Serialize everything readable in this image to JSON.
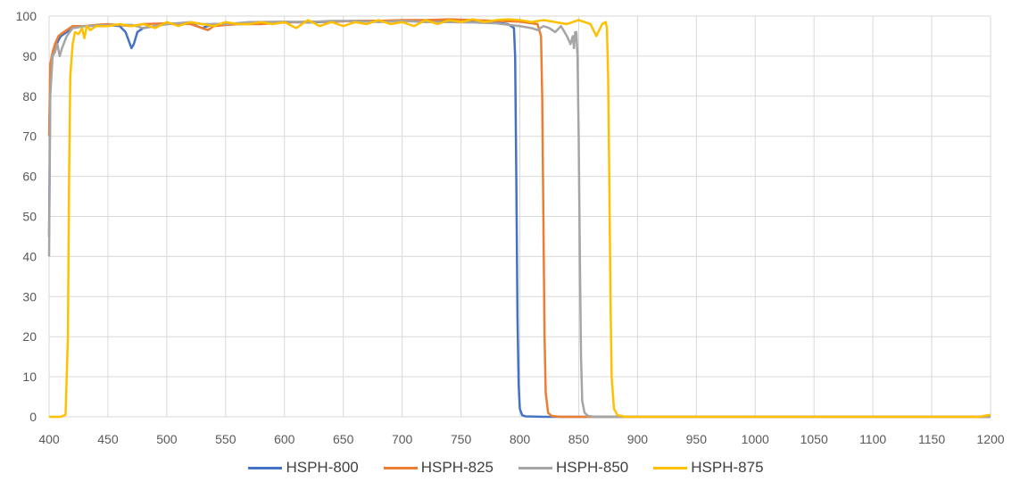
{
  "chart_data": {
    "type": "line",
    "title": "",
    "xlabel": "",
    "ylabel": "",
    "xlim": [
      400,
      1200
    ],
    "ylim": [
      0,
      100
    ],
    "xticks": [
      400,
      450,
      500,
      550,
      600,
      650,
      700,
      750,
      800,
      850,
      900,
      950,
      1000,
      1050,
      1100,
      1150,
      1200
    ],
    "yticks": [
      0,
      10,
      20,
      30,
      40,
      50,
      60,
      70,
      80,
      90,
      100
    ],
    "grid": true,
    "legend_position": "bottom",
    "series": [
      {
        "name": "HSPH-800",
        "color": "#4472C4",
        "points": [
          [
            400,
            45
          ],
          [
            401,
            85
          ],
          [
            403,
            90
          ],
          [
            405,
            92
          ],
          [
            408,
            94
          ],
          [
            410,
            95
          ],
          [
            415,
            96
          ],
          [
            420,
            97
          ],
          [
            430,
            97.5
          ],
          [
            440,
            97.6
          ],
          [
            450,
            97.8
          ],
          [
            460,
            97.5
          ],
          [
            465,
            96
          ],
          [
            470,
            92
          ],
          [
            472,
            93
          ],
          [
            475,
            96
          ],
          [
            480,
            97
          ],
          [
            490,
            97.5
          ],
          [
            500,
            98
          ],
          [
            520,
            98.2
          ],
          [
            530,
            97
          ],
          [
            540,
            98
          ],
          [
            560,
            98
          ],
          [
            580,
            98.2
          ],
          [
            600,
            98.5
          ],
          [
            620,
            98.4
          ],
          [
            640,
            98.6
          ],
          [
            660,
            98.8
          ],
          [
            680,
            98.8
          ],
          [
            700,
            98.9
          ],
          [
            720,
            98.8
          ],
          [
            740,
            99
          ],
          [
            760,
            98.6
          ],
          [
            780,
            98.4
          ],
          [
            790,
            98
          ],
          [
            795,
            97
          ],
          [
            796,
            90
          ],
          [
            797,
            60
          ],
          [
            798,
            25
          ],
          [
            799,
            8
          ],
          [
            800,
            2
          ],
          [
            802,
            0.4
          ],
          [
            805,
            0.1
          ],
          [
            820,
            0
          ],
          [
            900,
            0
          ],
          [
            1000,
            0
          ],
          [
            1100,
            0
          ],
          [
            1200,
            0
          ]
        ]
      },
      {
        "name": "HSPH-825",
        "color": "#ED7D31",
        "points": [
          [
            400,
            70
          ],
          [
            401,
            88
          ],
          [
            403,
            91
          ],
          [
            405,
            93
          ],
          [
            408,
            95
          ],
          [
            410,
            95.5
          ],
          [
            415,
            96.5
          ],
          [
            420,
            97.5
          ],
          [
            430,
            97.5
          ],
          [
            440,
            97.8
          ],
          [
            450,
            98
          ],
          [
            470,
            97.5
          ],
          [
            480,
            98
          ],
          [
            500,
            98.2
          ],
          [
            520,
            98
          ],
          [
            535,
            96.5
          ],
          [
            540,
            97.5
          ],
          [
            560,
            98
          ],
          [
            580,
            98
          ],
          [
            600,
            98.4
          ],
          [
            620,
            98.6
          ],
          [
            640,
            98.6
          ],
          [
            660,
            98.8
          ],
          [
            680,
            98.8
          ],
          [
            700,
            99
          ],
          [
            720,
            99
          ],
          [
            740,
            99.2
          ],
          [
            760,
            99
          ],
          [
            780,
            98.8
          ],
          [
            800,
            98.6
          ],
          [
            815,
            98
          ],
          [
            818,
            95
          ],
          [
            819,
            80
          ],
          [
            820,
            50
          ],
          [
            821,
            20
          ],
          [
            822,
            6
          ],
          [
            824,
            1
          ],
          [
            827,
            0.2
          ],
          [
            835,
            0
          ],
          [
            900,
            0
          ],
          [
            1000,
            0
          ],
          [
            1100,
            0
          ],
          [
            1200,
            0
          ]
        ]
      },
      {
        "name": "HSPH-850",
        "color": "#A5A5A5",
        "points": [
          [
            400,
            40
          ],
          [
            401,
            80
          ],
          [
            403,
            90
          ],
          [
            405,
            91
          ],
          [
            407,
            93
          ],
          [
            409,
            90
          ],
          [
            411,
            92
          ],
          [
            415,
            95
          ],
          [
            420,
            97
          ],
          [
            430,
            97.5
          ],
          [
            450,
            97.8
          ],
          [
            470,
            97.8
          ],
          [
            480,
            97
          ],
          [
            500,
            98
          ],
          [
            520,
            98.5
          ],
          [
            530,
            98
          ],
          [
            550,
            98
          ],
          [
            570,
            98.5
          ],
          [
            600,
            98.6
          ],
          [
            620,
            98.5
          ],
          [
            640,
            98.8
          ],
          [
            660,
            98.8
          ],
          [
            680,
            98.5
          ],
          [
            700,
            98.8
          ],
          [
            720,
            98.5
          ],
          [
            740,
            98.5
          ],
          [
            760,
            98.4
          ],
          [
            780,
            98.2
          ],
          [
            800,
            97.5
          ],
          [
            810,
            97
          ],
          [
            815,
            96.5
          ],
          [
            820,
            97.5
          ],
          [
            825,
            97
          ],
          [
            830,
            96
          ],
          [
            835,
            97.5
          ],
          [
            840,
            95
          ],
          [
            843,
            93
          ],
          [
            845,
            95
          ],
          [
            846,
            92
          ],
          [
            847,
            96
          ],
          [
            848,
            96
          ],
          [
            849,
            90
          ],
          [
            850,
            70
          ],
          [
            851,
            40
          ],
          [
            852,
            15
          ],
          [
            853,
            4
          ],
          [
            855,
            1
          ],
          [
            858,
            0.2
          ],
          [
            865,
            0
          ],
          [
            900,
            0
          ],
          [
            1000,
            0
          ],
          [
            1100,
            0
          ],
          [
            1200,
            0
          ]
        ]
      },
      {
        "name": "HSPH-875",
        "color": "#FFC000",
        "points": [
          [
            400,
            0
          ],
          [
            410,
            0
          ],
          [
            414,
            0.5
          ],
          [
            416,
            20
          ],
          [
            417,
            60
          ],
          [
            418,
            85
          ],
          [
            420,
            93
          ],
          [
            422,
            96
          ],
          [
            425,
            95.5
          ],
          [
            428,
            97
          ],
          [
            430,
            94.5
          ],
          [
            432,
            97.5
          ],
          [
            435,
            96.5
          ],
          [
            440,
            97.5
          ],
          [
            450,
            97.5
          ],
          [
            460,
            98
          ],
          [
            470,
            97.5
          ],
          [
            480,
            98
          ],
          [
            490,
            97
          ],
          [
            500,
            98.5
          ],
          [
            510,
            97.5
          ],
          [
            520,
            98.5
          ],
          [
            530,
            98
          ],
          [
            540,
            97.5
          ],
          [
            550,
            98.5
          ],
          [
            560,
            98
          ],
          [
            570,
            98
          ],
          [
            580,
            98.5
          ],
          [
            590,
            98
          ],
          [
            600,
            98.5
          ],
          [
            610,
            97
          ],
          [
            620,
            99
          ],
          [
            630,
            97.5
          ],
          [
            640,
            98.5
          ],
          [
            650,
            97.5
          ],
          [
            660,
            98.5
          ],
          [
            670,
            98
          ],
          [
            680,
            99
          ],
          [
            690,
            98
          ],
          [
            700,
            98.5
          ],
          [
            710,
            97.5
          ],
          [
            720,
            99
          ],
          [
            730,
            98
          ],
          [
            740,
            99
          ],
          [
            750,
            98.5
          ],
          [
            760,
            99.2
          ],
          [
            770,
            98.5
          ],
          [
            780,
            99
          ],
          [
            790,
            99.2
          ],
          [
            800,
            99
          ],
          [
            810,
            98.5
          ],
          [
            820,
            99
          ],
          [
            830,
            98.5
          ],
          [
            840,
            98
          ],
          [
            850,
            99
          ],
          [
            855,
            98.5
          ],
          [
            860,
            98
          ],
          [
            865,
            95
          ],
          [
            870,
            98
          ],
          [
            873,
            98.5
          ],
          [
            874,
            97
          ],
          [
            875,
            85
          ],
          [
            876,
            60
          ],
          [
            877,
            30
          ],
          [
            878,
            10
          ],
          [
            880,
            2
          ],
          [
            883,
            0.4
          ],
          [
            890,
            0
          ],
          [
            900,
            0
          ],
          [
            1000,
            0
          ],
          [
            1100,
            0
          ],
          [
            1190,
            0
          ],
          [
            1200,
            0.5
          ]
        ]
      }
    ]
  }
}
